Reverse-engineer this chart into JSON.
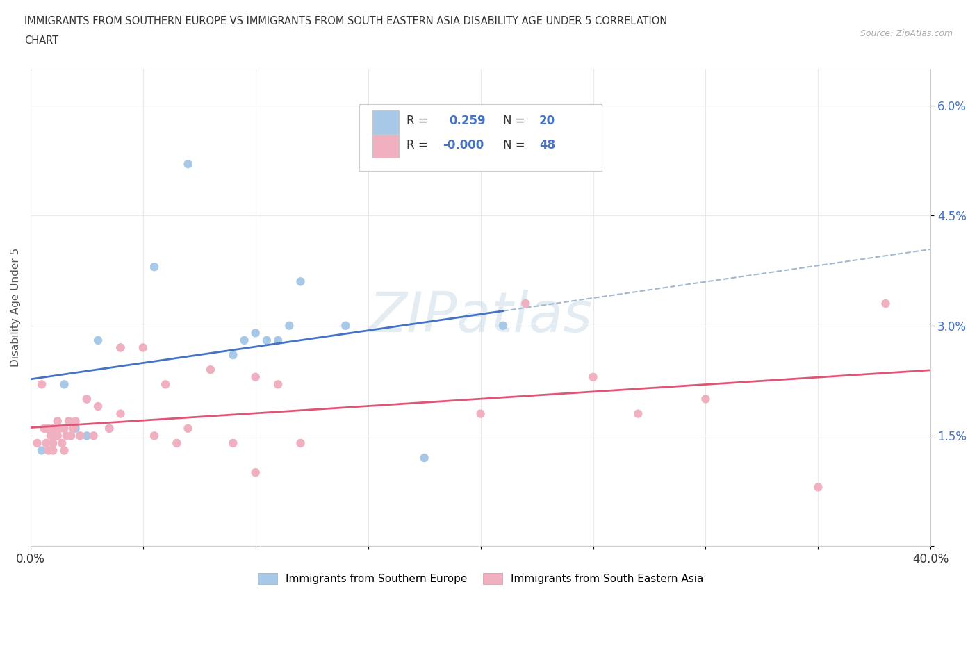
{
  "title_line1": "IMMIGRANTS FROM SOUTHERN EUROPE VS IMMIGRANTS FROM SOUTH EASTERN ASIA DISABILITY AGE UNDER 5 CORRELATION",
  "title_line2": "CHART",
  "source_text": "Source: ZipAtlas.com",
  "ylabel": "Disability Age Under 5",
  "xlim": [
    0.0,
    0.4
  ],
  "ylim": [
    0.0,
    0.065
  ],
  "xticks": [
    0.0,
    0.05,
    0.1,
    0.15,
    0.2,
    0.25,
    0.3,
    0.35,
    0.4
  ],
  "xticklabels": [
    "0.0%",
    "",
    "",
    "",
    "",
    "",
    "",
    "",
    "40.0%"
  ],
  "yticks": [
    0.0,
    0.015,
    0.03,
    0.045,
    0.06
  ],
  "yticklabels": [
    "",
    "1.5%",
    "3.0%",
    "4.5%",
    "6.0%"
  ],
  "color_blue": "#a8c8e8",
  "color_pink": "#f0b0c0",
  "color_blue_line": "#4472c4",
  "color_pink_line": "#e05575",
  "color_dashed": "#a0b8d0",
  "bg_color": "#ffffff",
  "grid_color": "#e8e8e8",
  "blue_scatter_x": [
    0.005,
    0.015,
    0.02,
    0.025,
    0.025,
    0.03,
    0.035,
    0.04,
    0.055,
    0.07,
    0.09,
    0.095,
    0.1,
    0.105,
    0.11,
    0.115,
    0.12,
    0.14,
    0.175,
    0.21
  ],
  "blue_scatter_y": [
    0.013,
    0.022,
    0.016,
    0.015,
    0.02,
    0.028,
    0.016,
    0.027,
    0.038,
    0.052,
    0.026,
    0.028,
    0.029,
    0.028,
    0.028,
    0.03,
    0.036,
    0.03,
    0.012,
    0.03
  ],
  "pink_scatter_x": [
    0.003,
    0.005,
    0.006,
    0.007,
    0.007,
    0.008,
    0.008,
    0.009,
    0.01,
    0.01,
    0.01,
    0.011,
    0.012,
    0.012,
    0.013,
    0.014,
    0.015,
    0.015,
    0.016,
    0.017,
    0.018,
    0.019,
    0.02,
    0.022,
    0.025,
    0.028,
    0.03,
    0.035,
    0.04,
    0.04,
    0.05,
    0.055,
    0.06,
    0.065,
    0.07,
    0.08,
    0.09,
    0.1,
    0.1,
    0.11,
    0.12,
    0.2,
    0.22,
    0.25,
    0.27,
    0.3,
    0.35,
    0.38
  ],
  "pink_scatter_y": [
    0.014,
    0.022,
    0.016,
    0.014,
    0.016,
    0.013,
    0.016,
    0.015,
    0.014,
    0.016,
    0.013,
    0.015,
    0.015,
    0.017,
    0.016,
    0.014,
    0.013,
    0.016,
    0.015,
    0.017,
    0.015,
    0.016,
    0.017,
    0.015,
    0.02,
    0.015,
    0.019,
    0.016,
    0.018,
    0.027,
    0.027,
    0.015,
    0.022,
    0.014,
    0.016,
    0.024,
    0.014,
    0.01,
    0.023,
    0.022,
    0.014,
    0.018,
    0.033,
    0.023,
    0.018,
    0.02,
    0.008,
    0.033
  ],
  "blue_line_x_solid_end": 0.21,
  "blue_line_intercept": 0.013,
  "blue_line_slope": 0.083,
  "pink_line_y": 0.0138,
  "watermark_text": "ZIPatlas",
  "watermark_color": "#c8d8e8",
  "watermark_alpha": 0.5
}
